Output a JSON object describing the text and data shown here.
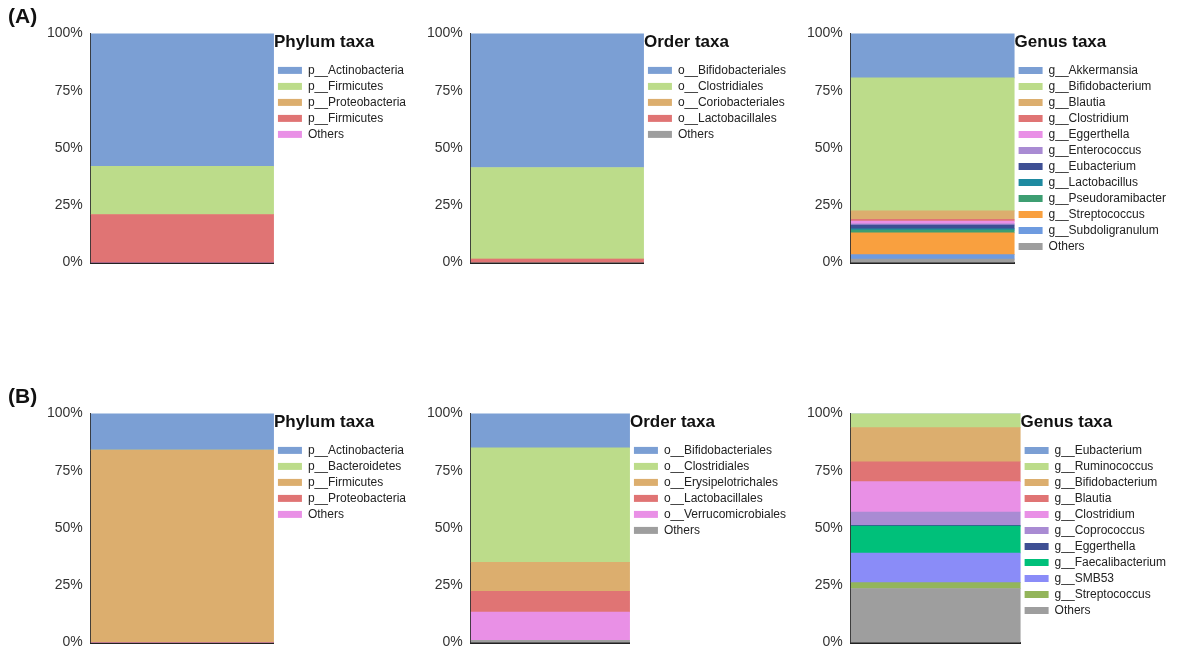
{
  "chart_data": [
    {
      "type": "bar",
      "stacked": true,
      "legend": "right",
      "legend_title": "Phylum taxa",
      "annotations": [
        "(A)"
      ],
      "tick_labels": "y",
      "categories": [
        null
      ],
      "ylim": [
        0,
        100
      ],
      "yticks": [
        {
          "value": 0,
          "label": "0%"
        },
        {
          "value": 25,
          "label": "25%"
        },
        {
          "value": 50,
          "label": "50%"
        },
        {
          "value": 75,
          "label": "75%"
        },
        {
          "value": 100,
          "label": "100%"
        }
      ],
      "series": [
        {
          "name": "Others",
          "color": "#e990e6",
          "values": [
            0
          ]
        },
        {
          "name": "p__Firmicutes",
          "color": "#e07474",
          "values": [
            21
          ]
        },
        {
          "name": "p__Proteobacteria",
          "color": "#dcae6e",
          "values": [
            0
          ]
        },
        {
          "name": "p__Firmicutes",
          "color": "#bcdc8a",
          "values": [
            21
          ]
        },
        {
          "name": "p__Actinobacteria",
          "color": "#7b9fd4",
          "values": [
            58
          ]
        }
      ]
    },
    {
      "type": "bar",
      "stacked": true,
      "legend": "right",
      "legend_title": "Order taxa",
      "tick_labels": "y",
      "categories": [
        null
      ],
      "ylim": [
        0,
        100
      ],
      "yticks": [
        {
          "value": 0,
          "label": "0%"
        },
        {
          "value": 25,
          "label": "25%"
        },
        {
          "value": 50,
          "label": "50%"
        },
        {
          "value": 75,
          "label": "75%"
        },
        {
          "value": 100,
          "label": "100%"
        }
      ],
      "series": [
        {
          "name": "Others",
          "color": "#9e9e9e",
          "values": [
            0
          ]
        },
        {
          "name": "o__Lactobacillales",
          "color": "#e07474",
          "values": [
            1.5
          ]
        },
        {
          "name": "o__Coriobacteriales",
          "color": "#dcae6e",
          "values": [
            0
          ]
        },
        {
          "name": "o__Clostridiales",
          "color": "#bcdc8a",
          "values": [
            40
          ]
        },
        {
          "name": "o__Bifidobacteriales",
          "color": "#7b9fd4",
          "values": [
            58.5
          ]
        }
      ]
    },
    {
      "type": "bar",
      "stacked": true,
      "legend": "right",
      "legend_title": "Genus taxa",
      "tick_labels": "y",
      "categories": [
        null
      ],
      "ylim": [
        0,
        100
      ],
      "yticks": [
        {
          "value": 0,
          "label": "0%"
        },
        {
          "value": 25,
          "label": "25%"
        },
        {
          "value": 50,
          "label": "50%"
        },
        {
          "value": 75,
          "label": "75%"
        },
        {
          "value": 100,
          "label": "100%"
        }
      ],
      "series": [
        {
          "name": "Others",
          "color": "#9e9e9e",
          "values": [
            1.5
          ]
        },
        {
          "name": "g__Subdoligranulum",
          "color": "#6e9be0",
          "values": [
            2
          ]
        },
        {
          "name": "g__Streptococcus",
          "color": "#f9a03f",
          "values": [
            9.5
          ]
        },
        {
          "name": "g__Pseudoramibacter",
          "color": "#3d9e72",
          "values": [
            1.2
          ]
        },
        {
          "name": "g__Lactobacillus",
          "color": "#1e8aa0",
          "values": [
            0.5
          ]
        },
        {
          "name": "g__Eubacterium",
          "color": "#3e4f94",
          "values": [
            1.7
          ]
        },
        {
          "name": "g__Enterococcus",
          "color": "#a98bd3",
          "values": [
            0.5
          ]
        },
        {
          "name": "g__Eggerthella",
          "color": "#e990e6",
          "values": [
            1.2
          ]
        },
        {
          "name": "g__Clostridium",
          "color": "#e07474",
          "values": [
            0.8
          ]
        },
        {
          "name": "g__Blautia",
          "color": "#dcae6e",
          "values": [
            3.7
          ]
        },
        {
          "name": "g__Bifidobacterium",
          "color": "#bcdc8a",
          "values": [
            58
          ]
        },
        {
          "name": "g__Akkermansia",
          "color": "#7b9fd4",
          "values": [
            19.4
          ]
        }
      ]
    },
    {
      "type": "bar",
      "stacked": true,
      "legend": "right",
      "legend_title": "Phylum taxa",
      "annotations": [
        "(B)"
      ],
      "tick_labels": "y",
      "categories": [
        null
      ],
      "ylim": [
        0,
        100
      ],
      "yticks": [
        {
          "value": 0,
          "label": "0%"
        },
        {
          "value": 25,
          "label": "25%"
        },
        {
          "value": 50,
          "label": "50%"
        },
        {
          "value": 75,
          "label": "75%"
        },
        {
          "value": 100,
          "label": "100%"
        }
      ],
      "series": [
        {
          "name": "Others",
          "color": "#e990e6",
          "values": [
            0
          ]
        },
        {
          "name": "p__Proteobacteria",
          "color": "#e07474",
          "values": [
            0
          ]
        },
        {
          "name": "p__Firmicutes",
          "color": "#dcae6e",
          "values": [
            84
          ]
        },
        {
          "name": "p__Bacteroidetes",
          "color": "#bcdc8a",
          "values": [
            0
          ]
        },
        {
          "name": "p__Actinobacteria",
          "color": "#7b9fd4",
          "values": [
            16
          ]
        }
      ]
    },
    {
      "type": "bar",
      "stacked": true,
      "legend": "right",
      "legend_title": "Order taxa",
      "tick_labels": "y",
      "categories": [
        null
      ],
      "ylim": [
        0,
        100
      ],
      "yticks": [
        {
          "value": 0,
          "label": "0%"
        },
        {
          "value": 25,
          "label": "25%"
        },
        {
          "value": 50,
          "label": "50%"
        },
        {
          "value": 75,
          "label": "75%"
        },
        {
          "value": 100,
          "label": "100%"
        }
      ],
      "series": [
        {
          "name": "Others",
          "color": "#9e9e9e",
          "values": [
            1
          ]
        },
        {
          "name": "o__Verrucomicrobiales",
          "color": "#e990e6",
          "values": [
            12.3
          ]
        },
        {
          "name": "o__Lactobacillales",
          "color": "#e07474",
          "values": [
            9.1
          ]
        },
        {
          "name": "o__Erysipelotrichales",
          "color": "#dcae6e",
          "values": [
            12.6
          ]
        },
        {
          "name": "o__Clostridiales",
          "color": "#bcdc8a",
          "values": [
            50
          ]
        },
        {
          "name": "o__Bifidobacteriales",
          "color": "#7b9fd4",
          "values": [
            15
          ]
        }
      ]
    },
    {
      "type": "bar",
      "stacked": true,
      "legend": "right",
      "legend_title": "Genus taxa",
      "tick_labels": "y",
      "categories": [
        null
      ],
      "ylim": [
        0,
        100
      ],
      "yticks": [
        {
          "value": 0,
          "label": "0%"
        },
        {
          "value": 25,
          "label": "25%"
        },
        {
          "value": 50,
          "label": "50%"
        },
        {
          "value": 75,
          "label": "75%"
        },
        {
          "value": 100,
          "label": "100%"
        }
      ],
      "series": [
        {
          "name": "Others",
          "color": "#9e9e9e",
          "values": [
            23.6
          ]
        },
        {
          "name": "g__Streptococcus",
          "color": "#93b55a",
          "values": [
            2.6
          ]
        },
        {
          "name": "g__SMB53",
          "color": "#8a8cf8",
          "values": [
            12.9
          ]
        },
        {
          "name": "g__Faecalibacterium",
          "color": "#00c07a",
          "values": [
            11.7
          ]
        },
        {
          "name": "g__Eggerthella",
          "color": "#3e4f94",
          "values": [
            0.4
          ]
        },
        {
          "name": "g__Coprococcus",
          "color": "#a98bd3",
          "values": [
            5.8
          ]
        },
        {
          "name": "g__Clostridium",
          "color": "#e990e6",
          "values": [
            13.2
          ]
        },
        {
          "name": "g__Blautia",
          "color": "#e07474",
          "values": [
            8.7
          ]
        },
        {
          "name": "g__Bifidobacterium",
          "color": "#dcae6e",
          "values": [
            14.9
          ]
        },
        {
          "name": "g__Ruminococcus",
          "color": "#bcdc8a",
          "values": [
            6.2
          ]
        },
        {
          "name": "g__Eubacterium",
          "color": "#7b9fd4",
          "values": [
            0
          ]
        }
      ]
    }
  ]
}
